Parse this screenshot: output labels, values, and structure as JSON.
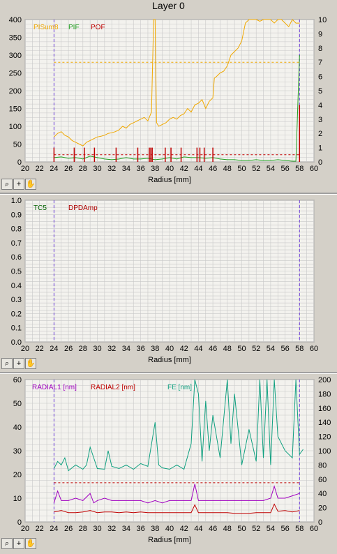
{
  "window": {
    "title": "Layer 0"
  },
  "toolbar_icons": [
    "zoom-icon",
    "crosshair-icon",
    "pan-hand-icon"
  ],
  "colors": {
    "plot_bg": "#f3f2ee",
    "grid": "#c8c8c8",
    "marker_line": "#6a3cd8",
    "pisum": "#f0a800",
    "pif": "#1e9e1e",
    "pof": "#c00000",
    "tc5": "#006000",
    "dpdamp": "#b00000",
    "radial1": "#a000c0",
    "radial2": "#c00000",
    "fe": "#10a080"
  },
  "chart_data": [
    {
      "type": "line",
      "xlabel": "Radius [mm]",
      "xlim": [
        20,
        60
      ],
      "xticks": [
        20,
        22,
        24,
        26,
        28,
        30,
        32,
        34,
        36,
        38,
        40,
        42,
        44,
        46,
        48,
        50,
        52,
        54,
        56,
        58,
        60
      ],
      "ylim": [
        0,
        400
      ],
      "yticks": [
        0,
        50,
        100,
        150,
        200,
        250,
        300,
        350,
        400
      ],
      "y2lim": [
        0,
        10
      ],
      "y2ticks": [
        0,
        1,
        2,
        3,
        4,
        5,
        6,
        7,
        8,
        9,
        10
      ],
      "grid": true,
      "legend_position": "top-left",
      "vlines": [
        24,
        58
      ],
      "hlines": [
        {
          "axis": "left",
          "value": 280,
          "series": "PISum8"
        },
        {
          "axis": "right",
          "value": 0.5,
          "series": "POF"
        }
      ],
      "series": [
        {
          "name": "PISum8",
          "axis": "left",
          "x": [
            24,
            24.5,
            25,
            25.5,
            26,
            26.5,
            27,
            27.5,
            28,
            28.5,
            29,
            29.5,
            30,
            30.5,
            31,
            31.5,
            32,
            32.5,
            33,
            33.5,
            34,
            34.5,
            35,
            35.5,
            36,
            36.5,
            37,
            37.5,
            37.8,
            38,
            38.2,
            38.5,
            39,
            39.5,
            40,
            40.5,
            41,
            41.5,
            42,
            42.5,
            43,
            43.5,
            44,
            44.5,
            45,
            45.5,
            46,
            46.2,
            46.5,
            47,
            47.5,
            48,
            48.5,
            49,
            49.5,
            50,
            50.5,
            51,
            51.5,
            52,
            52.5,
            53,
            53.5,
            54,
            54.5,
            55,
            55.5,
            56,
            56.5,
            57,
            57.5,
            58
          ],
          "y": [
            70,
            80,
            85,
            75,
            70,
            60,
            55,
            50,
            45,
            55,
            60,
            65,
            70,
            72,
            75,
            80,
            82,
            85,
            90,
            100,
            95,
            105,
            110,
            115,
            120,
            125,
            115,
            140,
            400,
            400,
            110,
            100,
            105,
            110,
            120,
            125,
            120,
            130,
            135,
            150,
            140,
            160,
            165,
            175,
            150,
            170,
            180,
            235,
            240,
            250,
            255,
            270,
            300,
            310,
            320,
            340,
            390,
            400,
            400,
            400,
            395,
            400,
            400,
            400,
            390,
            400,
            400,
            390,
            380,
            400,
            390,
            390
          ]
        },
        {
          "name": "PIF",
          "axis": "right",
          "x": [
            24,
            25,
            26,
            27,
            28,
            29,
            30,
            31,
            32,
            33,
            34,
            35,
            36,
            37,
            38,
            39,
            40,
            41,
            42,
            43,
            44,
            45,
            46,
            47,
            48,
            49,
            50,
            51,
            52,
            53,
            54,
            55,
            56,
            57,
            57.5,
            58
          ],
          "y": [
            0.3,
            0.35,
            0.25,
            0.3,
            0.2,
            0.4,
            0.3,
            0.2,
            0.15,
            0.2,
            0.3,
            0.2,
            0.2,
            0.25,
            0.15,
            0.2,
            0.3,
            0.2,
            0.35,
            0.3,
            0.3,
            0.25,
            0.3,
            0.2,
            0.15,
            0.15,
            0.1,
            0.1,
            0.15,
            0.1,
            0.1,
            0.15,
            0.1,
            0.05,
            0.05,
            7.5
          ]
        },
        {
          "name": "POF",
          "axis": "right",
          "x": [
            24,
            26.8,
            28.2,
            29.6,
            32.6,
            35.6,
            37.2,
            37.4,
            37.6,
            39.4,
            40.2,
            41.6,
            43.8,
            44.2,
            44.8,
            46,
            58
          ],
          "y": [
            1,
            1,
            1,
            1,
            1,
            1,
            1,
            1,
            1,
            1,
            1,
            1,
            1,
            1,
            1,
            1,
            4
          ]
        }
      ]
    },
    {
      "type": "line",
      "xlabel": "Radius [mm]",
      "xlim": [
        20,
        60
      ],
      "xticks": [
        20,
        22,
        24,
        26,
        28,
        30,
        32,
        34,
        36,
        38,
        40,
        42,
        44,
        46,
        48,
        50,
        52,
        54,
        56,
        58,
        60
      ],
      "ylim": [
        0,
        1
      ],
      "yticks": [
        "0.0",
        "0.1",
        "0.2",
        "0.3",
        "0.4",
        "0.5",
        "0.6",
        "0.7",
        "0.8",
        "0.9",
        "1.0"
      ],
      "grid": true,
      "legend_position": "top-left",
      "vlines": [
        24,
        58
      ],
      "series": [
        {
          "name": "TC5",
          "x": [],
          "y": []
        },
        {
          "name": "DPDAmp",
          "x": [],
          "y": []
        }
      ]
    },
    {
      "type": "line",
      "xlabel": "Radius [mm]",
      "xlim": [
        20,
        60
      ],
      "xticks": [
        20,
        22,
        24,
        26,
        28,
        30,
        32,
        34,
        36,
        38,
        40,
        42,
        44,
        46,
        48,
        50,
        52,
        54,
        56,
        58,
        60
      ],
      "ylim": [
        0,
        60
      ],
      "yticks": [
        0,
        10,
        20,
        30,
        40,
        50,
        60
      ],
      "y2lim": [
        0,
        200
      ],
      "y2ticks": [
        0,
        20,
        40,
        60,
        80,
        100,
        120,
        140,
        160,
        180,
        200
      ],
      "grid": true,
      "legend_position": "top-left",
      "vlines": [
        24,
        58
      ],
      "hlines": [
        {
          "axis": "right",
          "value": 55,
          "series": "RADIAL2 [nm]"
        }
      ],
      "series": [
        {
          "name": "RADIAL1 [nm]",
          "axis": "left",
          "x": [
            24,
            24.5,
            25,
            26,
            27,
            28,
            29,
            29.5,
            30,
            31,
            32,
            33,
            34,
            35,
            36,
            37,
            38,
            39,
            40,
            41,
            42,
            43,
            43.5,
            44,
            45,
            46,
            47,
            48,
            49,
            50,
            51,
            52,
            53,
            54,
            54.5,
            55,
            56,
            57,
            58
          ],
          "y": [
            8,
            13,
            9,
            9,
            10,
            9,
            12,
            8,
            9,
            10,
            9,
            9,
            9,
            9,
            9,
            8,
            9,
            8,
            9,
            9,
            9,
            9,
            16,
            9,
            9,
            9,
            9,
            9,
            9,
            9,
            9,
            9,
            9,
            10,
            15,
            10,
            10,
            11,
            12
          ]
        },
        {
          "name": "RADIAL2 [nm]",
          "axis": "right",
          "x": [
            24,
            25,
            26,
            27,
            28,
            29,
            30,
            31,
            32,
            33,
            34,
            35,
            36,
            37,
            38,
            39,
            40,
            41,
            42,
            43,
            43.5,
            44,
            45,
            46,
            47,
            48,
            49,
            50,
            51,
            52,
            53,
            54,
            54.5,
            55,
            56,
            57,
            58
          ],
          "y": [
            14,
            16,
            13,
            13,
            14,
            16,
            13,
            14,
            14,
            13,
            14,
            13,
            14,
            13,
            13,
            13,
            13,
            13,
            13,
            13,
            24,
            13,
            13,
            13,
            13,
            13,
            12,
            12,
            12,
            13,
            13,
            13,
            25,
            15,
            16,
            14,
            16
          ]
        },
        {
          "name": "FE [nm]",
          "axis": "right",
          "x": [
            24,
            24.5,
            25,
            25.5,
            26,
            27,
            28,
            28.5,
            29,
            30,
            31,
            31.5,
            32,
            33,
            34,
            35,
            36,
            37,
            38,
            38.5,
            39,
            40,
            41,
            42,
            43,
            43.5,
            44,
            44.5,
            45,
            45.5,
            46,
            47,
            48,
            48.5,
            49,
            50,
            51,
            52,
            52.5,
            53,
            53.5,
            54,
            54.5,
            55,
            56,
            57,
            57.5,
            58,
            58.5
          ],
          "y": [
            75,
            85,
            80,
            90,
            72,
            80,
            74,
            80,
            105,
            75,
            74,
            100,
            78,
            75,
            80,
            74,
            82,
            78,
            140,
            80,
            76,
            74,
            80,
            74,
            110,
            200,
            180,
            85,
            170,
            100,
            150,
            90,
            200,
            110,
            180,
            80,
            130,
            85,
            200,
            90,
            200,
            80,
            200,
            120,
            100,
            90,
            200,
            95,
            102
          ]
        }
      ]
    }
  ]
}
